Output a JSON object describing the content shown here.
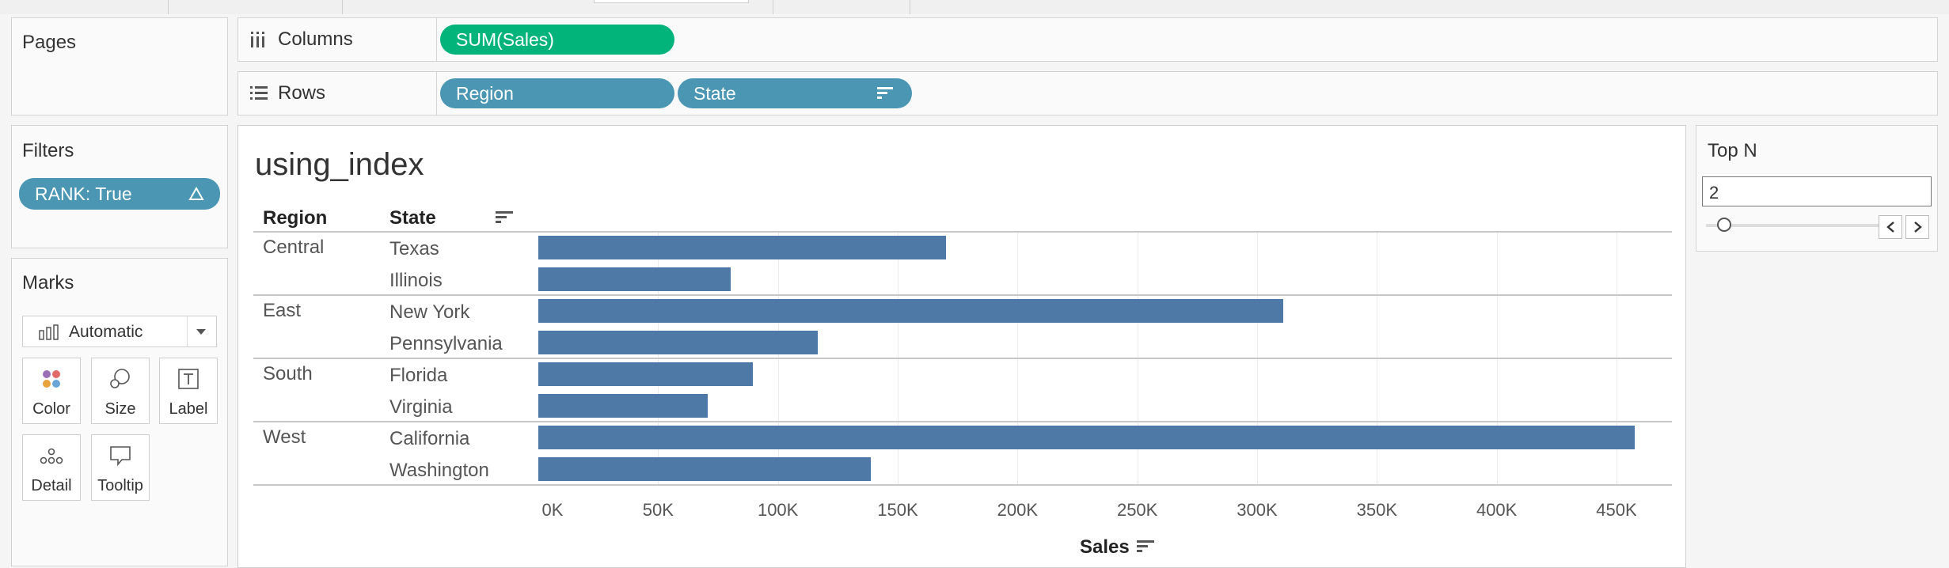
{
  "shelves": {
    "pages_label": "Pages",
    "filters_label": "Filters",
    "filter_pill": "RANK: True",
    "marks_label": "Marks",
    "mark_type": "Automatic",
    "mark_buttons": {
      "color": "Color",
      "size": "Size",
      "label": "Label",
      "detail": "Detail",
      "tooltip": "Tooltip"
    },
    "columns_label": "Columns",
    "columns_pill": "SUM(Sales)",
    "rows_label": "Rows",
    "rows_pills": [
      "Region",
      "State"
    ]
  },
  "sheet": {
    "title": "using_index",
    "header_region": "Region",
    "header_state": "State",
    "axis_title": "Sales"
  },
  "parameter": {
    "title": "Top N",
    "value": "2"
  },
  "chart_data": {
    "type": "bar",
    "orientation": "horizontal",
    "regions": [
      "Central",
      "East",
      "South",
      "West"
    ],
    "states": [
      "Texas",
      "Illinois",
      "New York",
      "Pennsylvania",
      "Florida",
      "Virginia",
      "California",
      "Washington"
    ],
    "state_region": [
      "Central",
      "Central",
      "East",
      "East",
      "South",
      "South",
      "West",
      "West"
    ],
    "values": [
      170188,
      80166,
      310876,
      116512,
      89474,
      70637,
      457688,
      138641
    ],
    "xlabel": "Sales",
    "xlim": [
      0,
      480000
    ],
    "ticks": [
      0,
      50000,
      100000,
      150000,
      200000,
      250000,
      300000,
      350000,
      400000,
      450000
    ],
    "tick_labels": [
      "0K",
      "50K",
      "100K",
      "150K",
      "200K",
      "250K",
      "300K",
      "350K",
      "400K",
      "450K"
    ],
    "bar_color": "#4e79a7",
    "grid": true
  }
}
